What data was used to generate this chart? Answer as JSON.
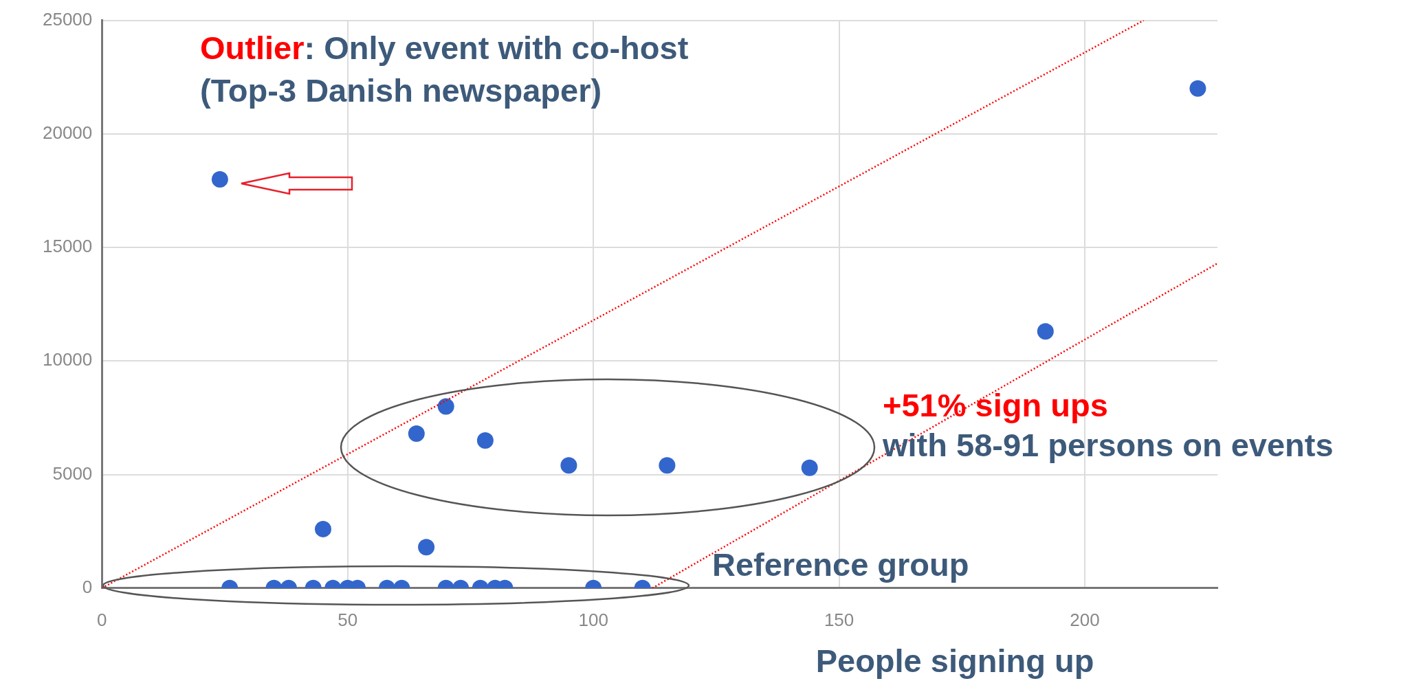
{
  "chart_data": {
    "type": "scatter",
    "x": [
      24,
      223,
      192,
      64,
      70,
      78,
      95,
      115,
      144,
      45,
      66,
      26,
      35,
      38,
      43,
      47,
      50,
      52,
      58,
      61,
      70,
      73,
      77,
      80,
      82,
      100,
      110
    ],
    "series": [
      {
        "color": "#3366cc",
        "marker": "circle",
        "values": [
          18000,
          22000,
          11300,
          6800,
          8000,
          6500,
          5400,
          5400,
          5300,
          2600,
          1800,
          0,
          0,
          0,
          0,
          0,
          0,
          0,
          0,
          0,
          0,
          0,
          0,
          0,
          0,
          0,
          0
        ]
      },
      {
        "type": "line",
        "color": "#ff0000",
        "marker": "none",
        "line_style": "dotted",
        "x": [
          0,
          212
        ],
        "values": [
          0,
          25000
        ]
      },
      {
        "type": "line",
        "color": "#ff0000",
        "marker": "none",
        "line_style": "dotted",
        "x": [
          112,
          227
        ],
        "values": [
          0,
          14300
        ]
      }
    ],
    "xlabel": "People signing up",
    "xlim": [
      0,
      227
    ],
    "xticks": [
      0,
      50,
      100,
      150,
      200
    ],
    "ylim": [
      0,
      25000
    ],
    "yticks": [
      0,
      5000,
      10000,
      15000,
      20000,
      25000
    ],
    "grid": true,
    "annotations": [
      "Outlier",
      ": Only event with co-host (Top-3 Danish newspaper)",
      "+51% sign ups",
      "with 58-91 persons on events",
      "Reference group"
    ]
  }
}
